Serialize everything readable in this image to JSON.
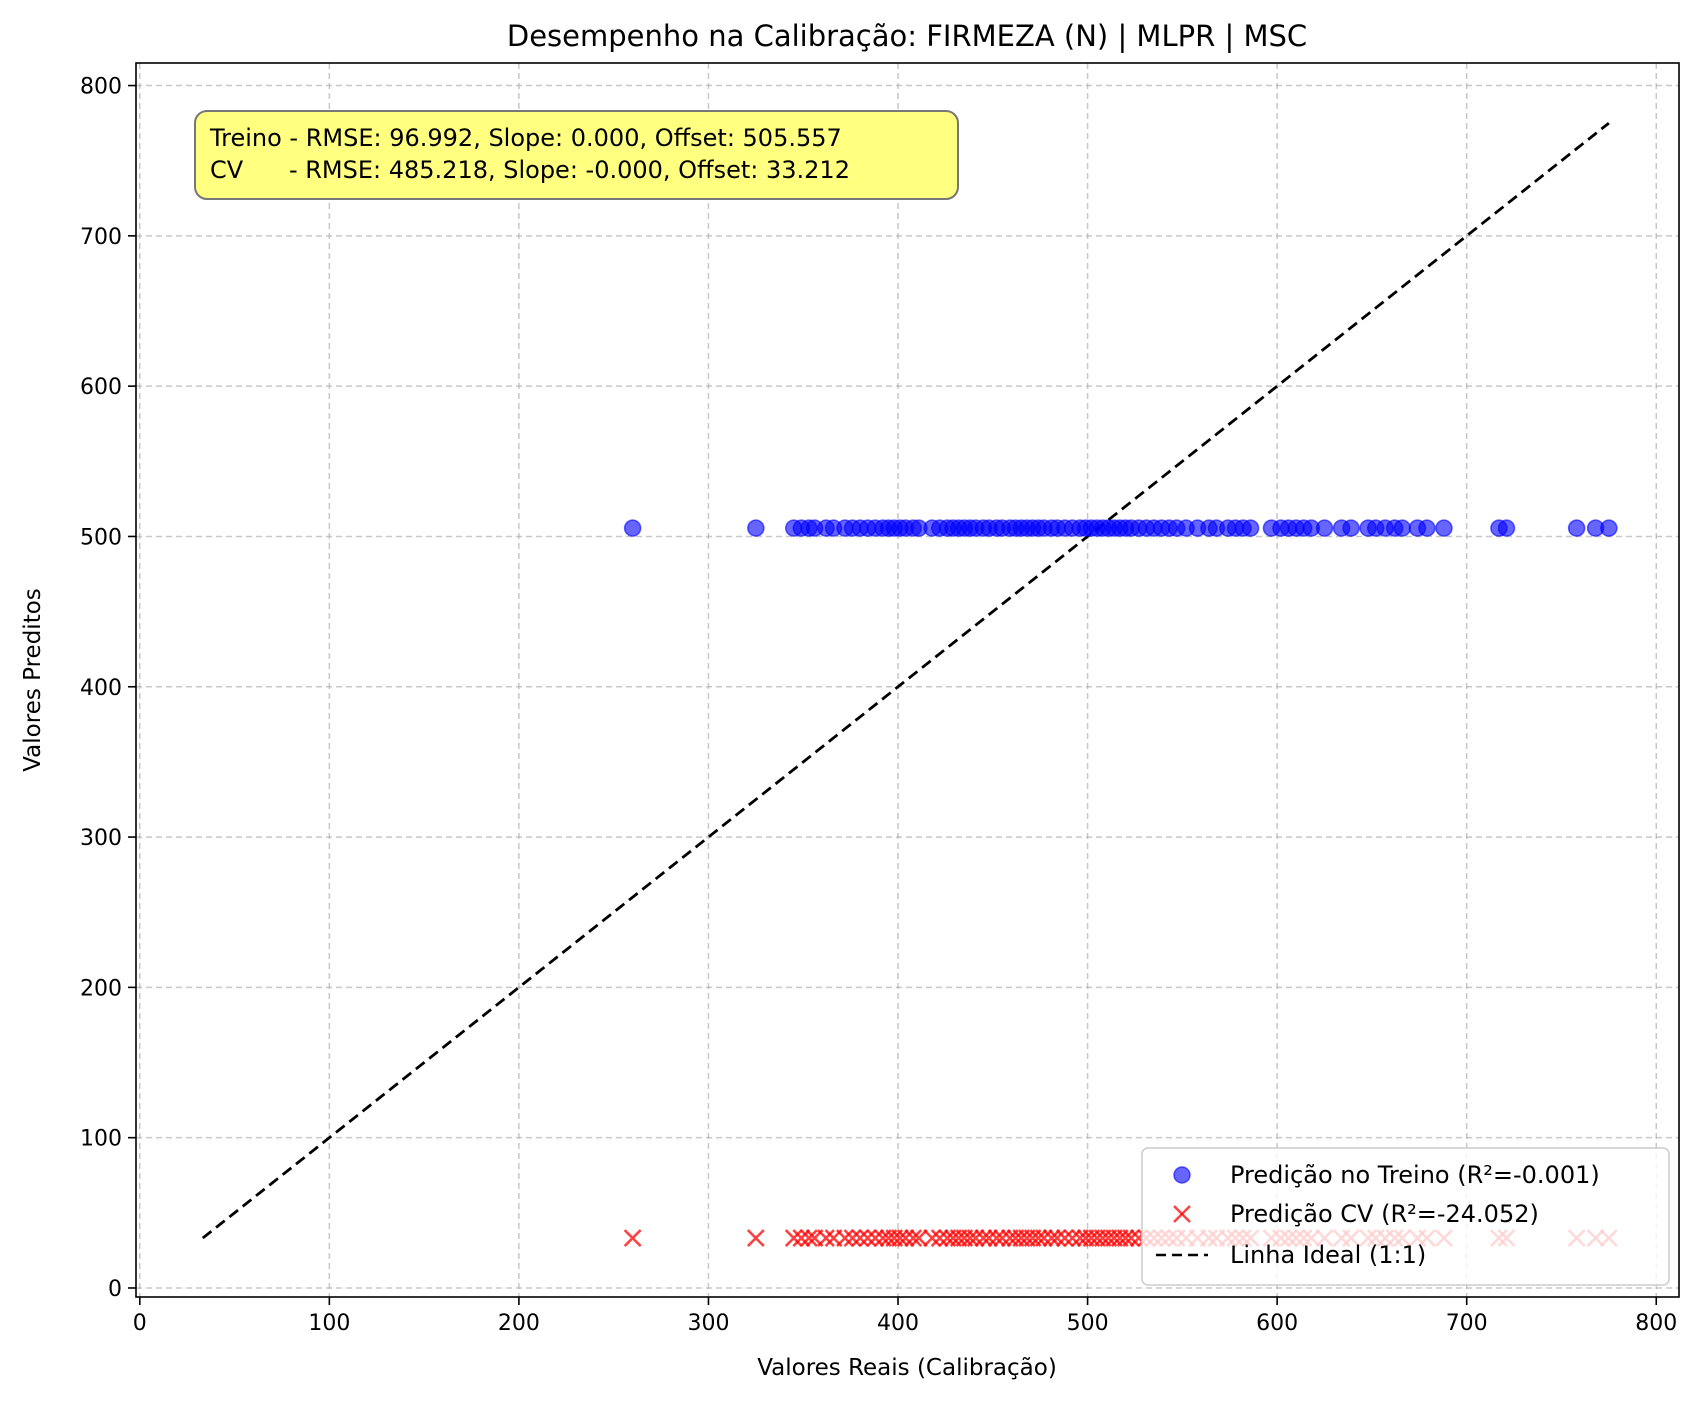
{
  "chart_data": {
    "type": "scatter",
    "title": "Desempenho na Calibração: FIRMEZA (N) | MLPR | MSC",
    "xlabel": "Valores Reais (Calibração)",
    "ylabel": "Valores Preditos",
    "xlim": [
      -2,
      812
    ],
    "ylim": [
      -6,
      815
    ],
    "xticks": [
      0,
      100,
      200,
      300,
      400,
      500,
      600,
      700,
      800
    ],
    "yticks": [
      0,
      100,
      200,
      300,
      400,
      500,
      600,
      700,
      800
    ],
    "grid": true,
    "legend_position": "lower-right",
    "stats_box": {
      "line1": "Treino - RMSE: 96.992, Slope: 0.000, Offset: 505.557",
      "line2": "CV      - RMSE: 485.218, Slope: -0.000, Offset: 33.212",
      "background": "#ffff80"
    },
    "x": [
      260,
      325,
      345,
      349,
      353,
      356,
      362,
      366,
      372,
      376,
      380,
      384,
      388,
      392,
      395,
      398,
      401,
      404,
      408,
      411,
      418,
      422,
      426,
      429,
      432,
      435,
      438,
      441,
      445,
      448,
      452,
      455,
      459,
      462,
      465,
      468,
      471,
      474,
      477,
      481,
      484,
      488,
      492,
      496,
      499,
      502,
      505,
      508,
      511,
      514,
      517,
      520,
      523,
      527,
      531,
      535,
      539,
      543,
      547,
      552,
      558,
      564,
      568,
      574,
      578,
      582,
      586,
      597,
      602,
      606,
      610,
      614,
      618,
      625,
      634,
      639,
      648,
      652,
      657,
      662,
      666,
      674,
      679,
      688,
      717,
      721,
      758,
      768,
      775
    ],
    "series": [
      {
        "name": "Predição no Treino (R²=-0.001)",
        "marker": "circle",
        "color": "#0000ff",
        "y_constant": 505.557
      },
      {
        "name": "Predição CV (R²=-24.052)",
        "marker": "x",
        "color": "#ff0000",
        "y_constant": 33.212
      },
      {
        "name": "Linha Ideal (1:1)",
        "marker": "dashed-line",
        "color": "#000000",
        "x": [
          33.212,
          775
        ],
        "y": [
          33.212,
          775
        ]
      }
    ]
  }
}
